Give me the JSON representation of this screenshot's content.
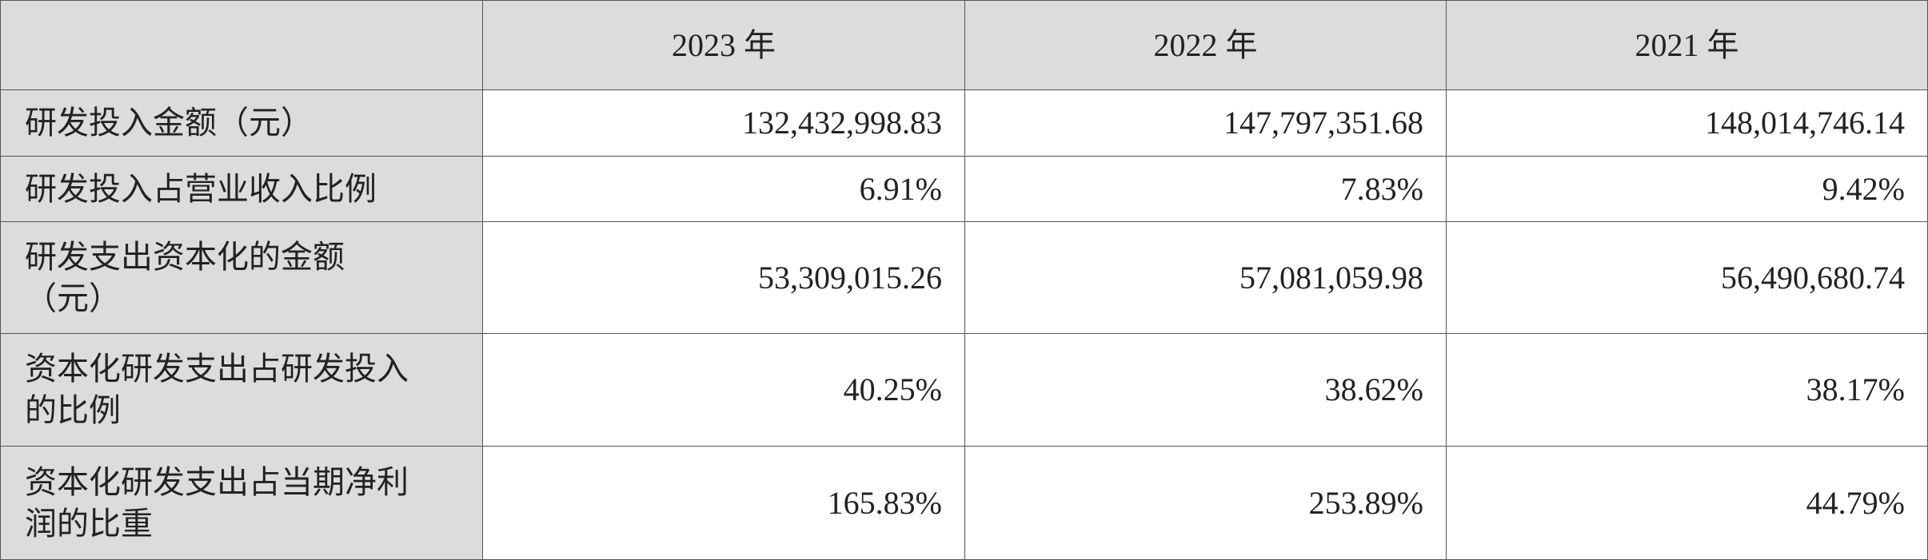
{
  "table": {
    "columns": [
      "",
      "2023 年",
      "2022 年",
      "2021 年"
    ],
    "rows": [
      {
        "label": "研发投入金额（元）",
        "values": [
          "132,432,998.83",
          "147,797,351.68",
          "148,014,746.14"
        ]
      },
      {
        "label": "研发投入占营业收入比例",
        "values": [
          "6.91%",
          "7.83%",
          "9.42%"
        ]
      },
      {
        "label": "研发支出资本化的金额（元）",
        "values": [
          "53,309,015.26",
          "57,081,059.98",
          "56,490,680.74"
        ]
      },
      {
        "label": "资本化研发支出占研发投入的比例",
        "values": [
          "40.25%",
          "38.62%",
          "38.17%"
        ]
      },
      {
        "label": "资本化研发支出占当期净利润的比重",
        "values": [
          "165.83%",
          "253.89%",
          "44.79%"
        ]
      }
    ]
  }
}
